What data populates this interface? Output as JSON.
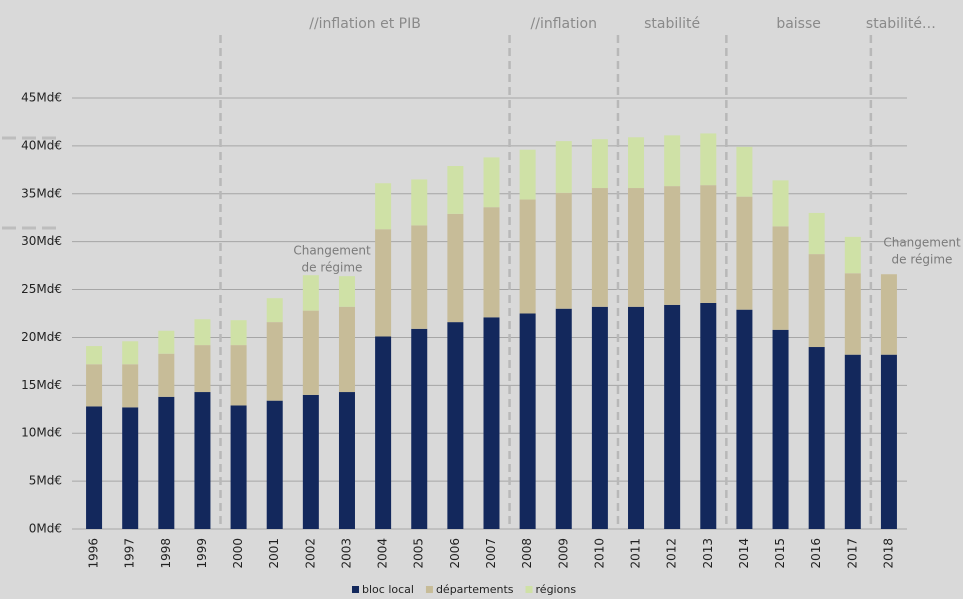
{
  "chart_data": {
    "type": "stacked_bar",
    "categories": [
      "1996",
      "1997",
      "1998",
      "1999",
      "2000",
      "2001",
      "2002",
      "2003",
      "2004",
      "2005",
      "2006",
      "2007",
      "2008",
      "2009",
      "2010",
      "2011",
      "2012",
      "2013",
      "2014",
      "2015",
      "2016",
      "2017",
      "2018"
    ],
    "series": [
      {
        "name": "bloc local",
        "color": "#13285c",
        "values": [
          12.8,
          12.7,
          13.8,
          14.3,
          12.9,
          13.4,
          14.0,
          14.3,
          20.1,
          20.9,
          21.6,
          22.1,
          22.5,
          23.0,
          23.2,
          23.2,
          23.4,
          23.6,
          22.9,
          20.8,
          19.0,
          18.2,
          18.2
        ]
      },
      {
        "name": "départements",
        "color": "#c7bc98",
        "values": [
          4.4,
          4.5,
          4.5,
          4.9,
          6.3,
          8.2,
          8.8,
          8.9,
          11.2,
          10.8,
          11.3,
          11.5,
          11.9,
          12.1,
          12.4,
          12.4,
          12.4,
          12.3,
          11.8,
          10.8,
          9.7,
          8.5,
          8.4
        ]
      },
      {
        "name": "régions",
        "color": "#cfe1a6",
        "values": [
          1.9,
          2.4,
          2.4,
          2.7,
          2.6,
          2.5,
          3.7,
          3.2,
          4.8,
          4.8,
          5.0,
          5.2,
          5.2,
          5.4,
          5.1,
          5.3,
          5.3,
          5.4,
          5.2,
          4.8,
          4.3,
          3.8,
          null
        ]
      }
    ],
    "ylim": [
      0,
      45
    ],
    "yticks": [
      {
        "value": 0,
        "label": "0Md€"
      },
      {
        "value": 5,
        "label": "5Md€"
      },
      {
        "value": 10,
        "label": "10Md€"
      },
      {
        "value": 15,
        "label": "15Md€"
      },
      {
        "value": 20,
        "label": "20Md€"
      },
      {
        "value": 25,
        "label": "25Md€"
      },
      {
        "value": 30,
        "label": "30Md€"
      },
      {
        "value": 35,
        "label": "35Md€"
      },
      {
        "value": 40,
        "label": "40Md€"
      },
      {
        "value": 45,
        "label": "45Md€"
      }
    ],
    "grid": true,
    "periods": [
      "//inflation et PIB",
      "//inflation",
      "stabilité",
      "baisse",
      "stabilité…"
    ],
    "annotations": [
      [
        "Changement",
        "de régime"
      ],
      [
        "Changement",
        "de régime"
      ]
    ]
  }
}
